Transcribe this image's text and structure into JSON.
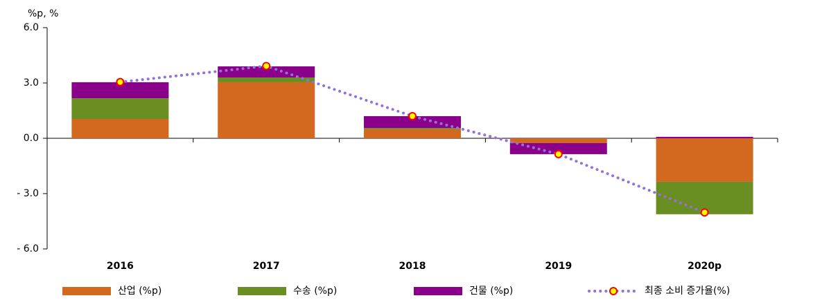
{
  "chart_data": {
    "type": "bar",
    "stacked": true,
    "y_axis_label": "%p, %",
    "categories": [
      "2016",
      "2017",
      "2018",
      "2019",
      "2020p"
    ],
    "series": [
      {
        "name": "산업 (%p)",
        "color": "#d2691e",
        "values": [
          1.05,
          3.04,
          0.49,
          -0.26,
          -2.36
        ]
      },
      {
        "name": "수송 (%p)",
        "color": "#6b8e23",
        "values": [
          1.12,
          0.26,
          0.07,
          0,
          -1.76
        ]
      },
      {
        "name": "건물 (%p)",
        "color": "#8b008b",
        "values": [
          0.87,
          0.6,
          0.64,
          -0.6,
          0.08
        ]
      },
      {
        "name": "최종 소비 증가율(%)",
        "type": "line",
        "color": "#9370db",
        "marker_fill": "#ffff00",
        "marker_stroke": "#ff0000",
        "values": [
          3.05,
          3.92,
          1.2,
          -0.86,
          -4.02
        ]
      }
    ],
    "ylim": [
      -6,
      6
    ],
    "yticks": [
      {
        "value": -6,
        "label": "- 6.0"
      },
      {
        "value": -3,
        "label": "- 3.0"
      },
      {
        "value": 0,
        "label": "0.0"
      },
      {
        "value": 3,
        "label": "3.0"
      },
      {
        "value": 6,
        "label": "6.0"
      }
    ],
    "grid": false
  }
}
